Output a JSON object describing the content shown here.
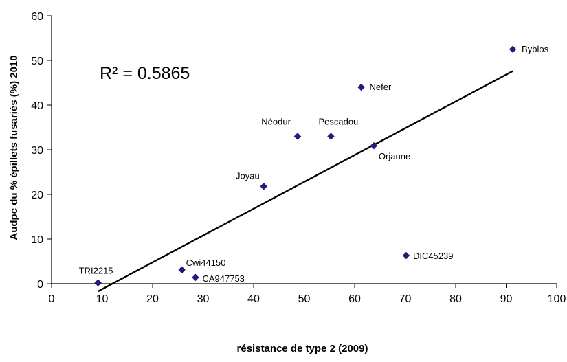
{
  "chart_data": {
    "type": "scatter",
    "title": "",
    "xlabel": "résistance de type 2 (2009)",
    "ylabel": "Audpc du % épillets fusariés (%) 2010",
    "xlim": [
      0,
      100
    ],
    "ylim": [
      0,
      60
    ],
    "xticks": [
      "0",
      "10",
      "20",
      "30",
      "40",
      "50",
      "60",
      "70",
      "80",
      "90",
      "100"
    ],
    "yticks": [
      "0",
      "10",
      "20",
      "30",
      "40",
      "50",
      "60"
    ],
    "grid": false,
    "legend": "none",
    "annotation": "R² = 0.5865",
    "marker_color": "#1F1F7A",
    "trendline_color": "#000000",
    "points": [
      {
        "label": "TRI2215",
        "x": 9.2,
        "y": 0.2
      },
      {
        "label": "Cwi44150",
        "x": 25.8,
        "y": 3.1
      },
      {
        "label": "CA947753",
        "x": 28.5,
        "y": 1.4
      },
      {
        "label": "Joyau",
        "x": 42.0,
        "y": 21.8
      },
      {
        "label": "Néodur",
        "x": 48.7,
        "y": 33.0
      },
      {
        "label": "Pescadou",
        "x": 55.3,
        "y": 33.0
      },
      {
        "label": "Nefer",
        "x": 61.3,
        "y": 44.0
      },
      {
        "label": "Orjaune",
        "x": 63.8,
        "y": 30.9
      },
      {
        "label": "DIC45239",
        "x": 70.2,
        "y": 6.3
      },
      {
        "label": "Byblos",
        "x": 91.3,
        "y": 52.5
      }
    ],
    "trendline": {
      "x": [
        9.2,
        91.3
      ],
      "y": [
        -1.7,
        47.6
      ]
    }
  }
}
